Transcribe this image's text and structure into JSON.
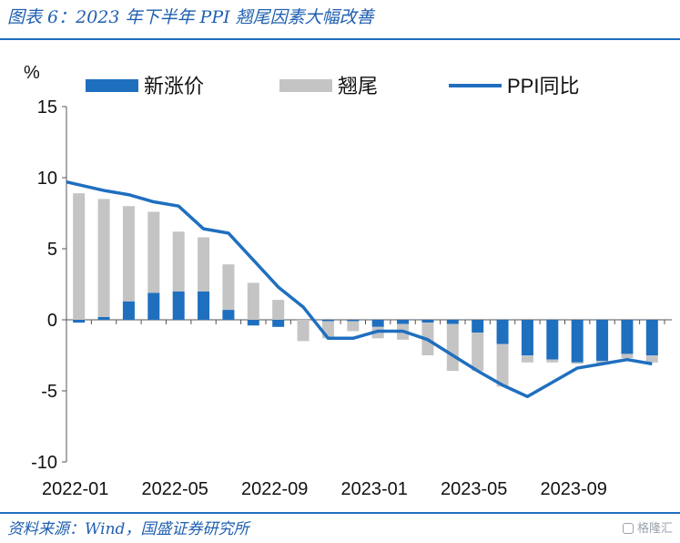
{
  "figure": {
    "title": "图表 6：2023 年下半年 PPI 翘尾因素大幅改善",
    "source": "资料来源：Wind，国盛证券研究所",
    "watermark": "格隆汇"
  },
  "colors": {
    "new_price": "#1f6fbf",
    "carryover": "#c4c4c4",
    "ppi_line": "#1f6fbf",
    "title": "#1f5fb0"
  },
  "chart_data": {
    "type": "bar",
    "unit_label": "%",
    "x": [
      "2022-01",
      "2022-02",
      "2022-03",
      "2022-04",
      "2022-05",
      "2022-06",
      "2022-07",
      "2022-08",
      "2022-09",
      "2022-10",
      "2022-11",
      "2022-12",
      "2023-01",
      "2023-02",
      "2023-03",
      "2023-04",
      "2023-05",
      "2023-06",
      "2023-07",
      "2023-08",
      "2023-09",
      "2023-10",
      "2023-11",
      "2023-12"
    ],
    "x_tick_labels": [
      "2022-01",
      "2022-05",
      "2022-09",
      "2023-01",
      "2023-05",
      "2023-09"
    ],
    "ylim": [
      -10,
      15
    ],
    "yticks": [
      15,
      10,
      5,
      0,
      -5,
      -10
    ],
    "legend_position": "top",
    "series": [
      {
        "name": "新涨价",
        "type": "bar",
        "stack": "total",
        "values": [
          -0.2,
          0.2,
          1.3,
          1.9,
          2.0,
          2.0,
          0.7,
          -0.4,
          -0.5,
          0.0,
          -0.1,
          -0.1,
          -0.5,
          -0.3,
          -0.2,
          -0.3,
          -0.9,
          -1.7,
          -2.5,
          -2.8,
          -3.0,
          -2.9,
          -2.4,
          -2.5
        ]
      },
      {
        "name": "翘尾",
        "type": "bar",
        "stack": "total",
        "values": [
          8.9,
          8.3,
          6.7,
          5.7,
          4.2,
          3.8,
          3.2,
          2.6,
          1.4,
          -1.5,
          -1.2,
          -0.7,
          -0.8,
          -1.1,
          -2.3,
          -3.3,
          -2.7,
          -3.0,
          -0.5,
          -0.2,
          -0.1,
          -0.2,
          -0.3,
          -0.5
        ]
      },
      {
        "name": "PPI同比",
        "type": "line",
        "values": [
          9.7,
          9.1,
          8.8,
          8.3,
          8.0,
          6.4,
          6.1,
          4.2,
          2.3,
          0.9,
          -1.3,
          -1.3,
          -0.8,
          -0.8,
          -1.4,
          -2.5,
          -3.6,
          -4.6,
          -5.4,
          -4.4,
          -3.4,
          -3.1,
          -2.8,
          -3.1
        ]
      }
    ]
  }
}
